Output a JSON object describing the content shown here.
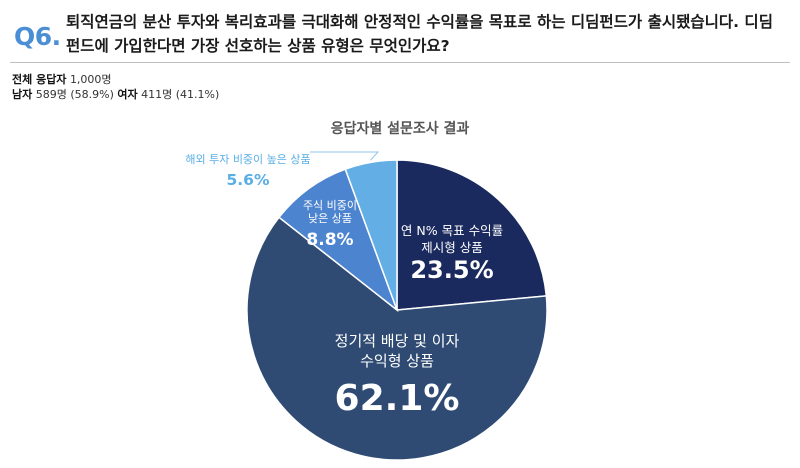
{
  "question": {
    "number": "Q6.",
    "line1": "퇴직연금의 분산 투자와 복리효과를 극대화해 안정적인 수익률을 목표로 하는 디딤펀드가 출시됐습니다. 디딤",
    "line2": "펀드에 가입한다면 가장 선호하는 상품 유형은 무엇인가요?"
  },
  "respondents": {
    "total_label": "전체 응답자",
    "total_value": "1,000명",
    "male_label": "남자",
    "male_value": "589명 (58.9%)",
    "female_label": "여자",
    "female_value": "411명 (41.1%)"
  },
  "chart_data": {
    "type": "pie",
    "title": "응답자별 설문조사 결과",
    "start": "12 o'clock",
    "direction": "clockwise",
    "slices": [
      {
        "label_lines": [
          "연 N% 목표 수익률",
          "제시형 상품"
        ],
        "value": 23.5,
        "value_label": "23.5%",
        "color": "#1b2a5e"
      },
      {
        "label_lines": [
          "정기적 배당 및 이자",
          "수익형 상품"
        ],
        "value": 62.1,
        "value_label": "62.1%",
        "color": "#2f4b73"
      },
      {
        "label_lines": [
          "주식 비중이",
          "낮은 상품"
        ],
        "value": 8.8,
        "value_label": "8.8%",
        "color": "#4d84cf"
      },
      {
        "label_lines": [
          "해외 투자 비중이 높은 상품"
        ],
        "value": 5.6,
        "value_label": "5.6%",
        "color": "#64aee6"
      }
    ]
  }
}
